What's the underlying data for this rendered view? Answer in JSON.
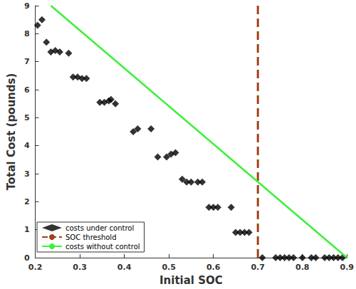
{
  "chart_data": {
    "type": "scatter",
    "x_label": "Initial SOC",
    "y_label": "Total Cost (pounds)",
    "xlim": [
      0.2,
      0.9
    ],
    "xticks": [
      0.2,
      0.3,
      0.4,
      0.5,
      0.6,
      0.7,
      0.8,
      0.9
    ],
    "ylim": [
      0,
      9
    ],
    "yticks": [
      0,
      1,
      2,
      3,
      4,
      5,
      6,
      7,
      8,
      9
    ],
    "grid": false,
    "legend": "lower left",
    "series": [
      {
        "name": "costs under control",
        "type": "scatter",
        "color": "#000000",
        "marker": "diamond",
        "x": [
          0.205,
          0.215,
          0.225,
          0.235,
          0.245,
          0.255,
          0.275,
          0.285,
          0.295,
          0.305,
          0.315,
          0.345,
          0.355,
          0.365,
          0.37,
          0.38,
          0.42,
          0.43,
          0.46,
          0.475,
          0.495,
          0.505,
          0.515,
          0.53,
          0.54,
          0.55,
          0.565,
          0.575,
          0.59,
          0.6,
          0.61,
          0.64,
          0.65,
          0.66,
          0.67,
          0.68,
          0.71,
          0.74,
          0.75,
          0.76,
          0.77,
          0.78,
          0.8,
          0.82,
          0.83,
          0.85,
          0.86,
          0.87,
          0.88,
          0.89
        ],
        "values": [
          8.3,
          8.5,
          7.7,
          7.35,
          7.4,
          7.35,
          7.3,
          6.45,
          6.45,
          6.4,
          6.4,
          5.55,
          5.55,
          5.6,
          5.65,
          5.5,
          4.5,
          4.6,
          4.6,
          3.6,
          3.6,
          3.7,
          3.75,
          2.8,
          2.7,
          2.7,
          2.7,
          2.7,
          1.8,
          1.8,
          1.8,
          1.8,
          0.9,
          0.9,
          0.9,
          0.9,
          0,
          0,
          0,
          0,
          0,
          0,
          0,
          0,
          0,
          0,
          0,
          0,
          0,
          0
        ]
      },
      {
        "name": "SOC threshold",
        "type": "line",
        "color": "#a0401a",
        "line_style": "dashed",
        "x": [
          0.7,
          0.7
        ],
        "values": [
          0,
          9
        ]
      },
      {
        "name": "costs without control",
        "type": "line",
        "color": "#3ef03a",
        "line_style": "solid",
        "x": [
          0.235,
          0.9
        ],
        "values": [
          9,
          0
        ]
      }
    ]
  }
}
